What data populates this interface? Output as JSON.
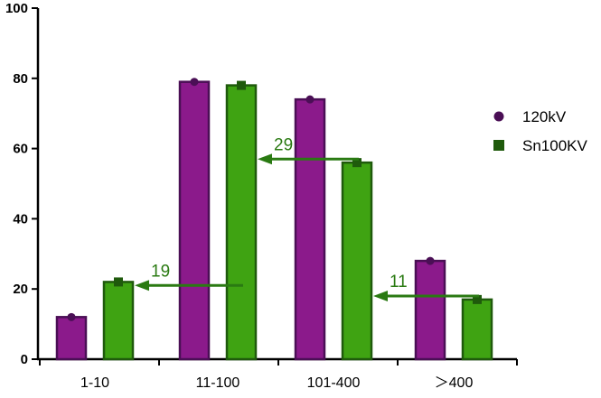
{
  "chart_data": {
    "type": "bar",
    "title": "",
    "xlabel": "",
    "ylabel": "",
    "categories": [
      "1-10",
      "11-100",
      "101-400",
      "＞400"
    ],
    "series": [
      {
        "name": "120kV",
        "values": [
          12,
          79,
          74,
          28
        ],
        "color": "#8b1a8b",
        "marker_color": "#4a0f55",
        "marker": "circle"
      },
      {
        "name": "Sn100KV",
        "values": [
          22,
          78,
          56,
          17
        ],
        "color": "#3fa312",
        "marker_color": "#1f5a0c",
        "marker": "square"
      }
    ],
    "ylim": [
      0,
      100
    ],
    "yticks": [
      0,
      20,
      40,
      60,
      80,
      100
    ],
    "grid": false,
    "legend": "right",
    "annotations": [
      {
        "text": "19",
        "category": "1-10",
        "y": 21,
        "from_category": "11-100"
      },
      {
        "text": "29",
        "category": "11-100",
        "y": 57,
        "from_category": "101-400"
      },
      {
        "text": "11",
        "category": "101-400",
        "y": 18,
        "from_category": "＞400"
      }
    ],
    "annotation_color": "#2a7a12"
  }
}
